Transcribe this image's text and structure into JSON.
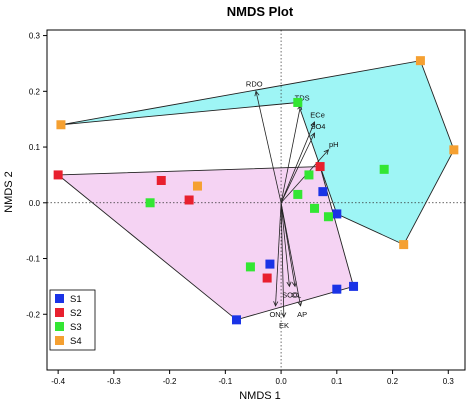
{
  "chart_data": {
    "type": "scatter",
    "title": "NMDS Plot",
    "xlabel": "NMDS 1",
    "ylabel": "NMDS 2",
    "xlim": [
      -0.42,
      0.33
    ],
    "ylim": [
      -0.3,
      0.31
    ],
    "xticks": [
      -0.4,
      -0.3,
      -0.2,
      -0.1,
      0.0,
      0.1,
      0.2,
      0.3
    ],
    "yticks": [
      -0.2,
      -0.1,
      0.0,
      0.1,
      0.2,
      0.3
    ],
    "xtick_labels": [
      "-0.4",
      "-0.3",
      "-0.2",
      "-0.1",
      "0.0",
      "0.1",
      "0.2",
      "0.3"
    ],
    "ytick_labels": [
      "-0.2",
      "-0.1",
      "0.0",
      "0.1",
      "0.2",
      "0.3"
    ],
    "grid": false,
    "reference_lines": "dotted lines at x=0 and y=0",
    "legend_position": "bottom-left",
    "series": [
      {
        "name": "S1",
        "color": "#1a33e6",
        "points": [
          [
            -0.08,
            -0.21
          ],
          [
            -0.02,
            -0.11
          ],
          [
            0.075,
            0.02
          ],
          [
            0.1,
            -0.02
          ],
          [
            0.1,
            -0.155
          ],
          [
            0.13,
            -0.15
          ]
        ]
      },
      {
        "name": "S2",
        "color": "#e8202e",
        "points": [
          [
            -0.4,
            0.05
          ],
          [
            -0.215,
            0.04
          ],
          [
            -0.165,
            0.005
          ],
          [
            -0.025,
            -0.135
          ],
          [
            0.07,
            0.065
          ]
        ]
      },
      {
        "name": "S3",
        "color": "#33e633",
        "points": [
          [
            -0.235,
            0.0
          ],
          [
            -0.055,
            -0.115
          ],
          [
            0.03,
            0.18
          ],
          [
            0.03,
            0.015
          ],
          [
            0.05,
            0.05
          ],
          [
            0.06,
            -0.01
          ],
          [
            0.085,
            -0.025
          ],
          [
            0.185,
            0.06
          ]
        ]
      },
      {
        "name": "S4",
        "color": "#f5a031",
        "points": [
          [
            -0.395,
            0.14
          ],
          [
            -0.15,
            0.03
          ],
          [
            0.25,
            0.255
          ],
          [
            0.31,
            0.095
          ],
          [
            0.22,
            -0.075
          ]
        ]
      }
    ],
    "hulls": [
      {
        "group": "S3",
        "fill": "#00e5e5",
        "vertices": [
          [
            -0.395,
            0.14
          ],
          [
            0.25,
            0.255
          ],
          [
            0.31,
            0.095
          ],
          [
            0.22,
            -0.075
          ],
          [
            0.1,
            -0.02
          ],
          [
            0.03,
            0.18
          ]
        ]
      },
      {
        "group": "S2",
        "fill": "#e58ce0",
        "vertices": [
          [
            -0.4,
            0.05
          ],
          [
            0.07,
            0.065
          ],
          [
            0.13,
            -0.15
          ],
          [
            -0.08,
            -0.21
          ]
        ]
      }
    ],
    "vectors": [
      {
        "label": "RDO",
        "x": -0.045,
        "y": 0.2
      },
      {
        "label": "TDS",
        "x": 0.035,
        "y": 0.175
      },
      {
        "label": "ECe",
        "x": 0.06,
        "y": 0.145
      },
      {
        "label": "SO4",
        "x": 0.06,
        "y": 0.125
      },
      {
        "label": "pH",
        "x": 0.085,
        "y": 0.095
      },
      {
        "label": "SOC",
        "x": 0.015,
        "y": -0.15
      },
      {
        "label": "OL",
        "x": 0.025,
        "y": -0.15
      },
      {
        "label": "ON",
        "x": -0.01,
        "y": -0.185
      },
      {
        "label": "AP",
        "x": 0.035,
        "y": -0.185
      },
      {
        "label": "EK",
        "x": 0.005,
        "y": -0.205
      }
    ]
  }
}
